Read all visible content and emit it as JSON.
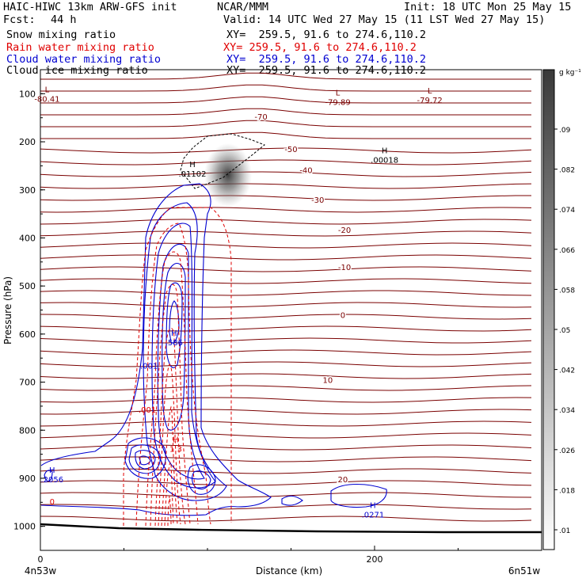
{
  "header": {
    "title_left": "HAIC-HIWC 13km ARW-GFS init",
    "center_label": "NCAR/MMM",
    "init_label": "Init: 18 UTC Mon 25 May 15",
    "fcst_label": "Fcst:",
    "fcst_hours": "44 h",
    "valid_label": "Valid: 14 UTC Wed 27 May 15 (11 LST Wed 27 May 15)",
    "fields": [
      {
        "name": "Snow mixing ratio",
        "xy": "XY=  259.5, 91.6 to 274.6,110.2",
        "color": "#000000"
      },
      {
        "name": "Rain water mixing ratio",
        "xy": "XY= 259.5, 91.6 to 274.6,110.2",
        "color": "#e00000"
      },
      {
        "name": "Cloud water mixing ratio",
        "xy": "XY=  259.5, 91.6 to 274.6,110.2",
        "color": "#0000d0"
      },
      {
        "name": "Cloud ice mixing ratio",
        "xy": "XY=  259.5, 91.6 to 274.6,110.2",
        "color": "#000000"
      }
    ]
  },
  "colors": {
    "temperature": "#7a0000",
    "rain": "#e00000",
    "cloud_water": "#0000d0",
    "snow": "#000000",
    "terrain": "#000000"
  },
  "chart_data": {
    "type": "contour",
    "xlabel": "Distance (km)",
    "ylabel": "Pressure (hPa)",
    "xlim": [
      0,
      300
    ],
    "ylim": [
      1050,
      50
    ],
    "x_ticks": [
      0,
      200
    ],
    "y_ticks": [
      100,
      200,
      300,
      400,
      500,
      600,
      700,
      800,
      900,
      1000
    ],
    "left_endpoint": "4n53w",
    "right_endpoint": "6n51w",
    "colorbar": {
      "unit": "g kg⁻¹",
      "levels": [
        ".01",
        ".018",
        ".026",
        ".034",
        ".042",
        ".05",
        ".058",
        ".066",
        ".074",
        ".082",
        ".09"
      ]
    },
    "temperature_contours": [
      {
        "label": "-70",
        "x": 132,
        "p": 147
      },
      {
        "label": "-50",
        "x": 150,
        "p": 215
      },
      {
        "label": "-40",
        "x": 159,
        "p": 258
      },
      {
        "label": "-30",
        "x": 166,
        "p": 320
      },
      {
        "label": "-20",
        "x": 182,
        "p": 383
      },
      {
        "label": "-10",
        "x": 182,
        "p": 460
      },
      {
        "label": "0",
        "x": 181,
        "p": 560
      },
      {
        "label": "10",
        "x": 172,
        "p": 695
      },
      {
        "label": "20",
        "x": 181,
        "p": 902
      }
    ],
    "extrema": [
      {
        "kind": "L",
        "value": "-80.41",
        "x": 4,
        "p": 110,
        "field": "temperature"
      },
      {
        "kind": "L",
        "value": "-79.89",
        "x": 178,
        "p": 117,
        "field": "temperature"
      },
      {
        "kind": "L",
        "value": "-79.72",
        "x": 233,
        "p": 113,
        "field": "temperature"
      },
      {
        "kind": "H",
        "value": ".00018",
        "x": 206,
        "p": 237,
        "field": "snow"
      },
      {
        "kind": "H",
        "value": ".01102",
        "x": 91,
        "p": 266,
        "field": "snow"
      },
      {
        "kind": "H",
        "value": ".586",
        "x": 80,
        "p": 617,
        "field": "cloud_water"
      },
      {
        "kind": "H",
        "value": "1.3",
        "x": 81,
        "p": 838,
        "field": "rain"
      },
      {
        "kind": "H",
        "value": ".2056",
        "x": 7,
        "p": 902,
        "field": "cloud_water"
      },
      {
        "kind": "H",
        "value": ".0271",
        "x": 199,
        "p": 975,
        "field": "cloud_water"
      }
    ],
    "contour_labels": [
      {
        "label": ".001",
        "x": 65,
        "p": 665,
        "field": "cloud_water"
      },
      {
        "label": ".001",
        "x": 64,
        "p": 757,
        "field": "rain"
      },
      {
        "label": "0",
        "x": 7,
        "p": 948,
        "field": "rain"
      }
    ]
  }
}
